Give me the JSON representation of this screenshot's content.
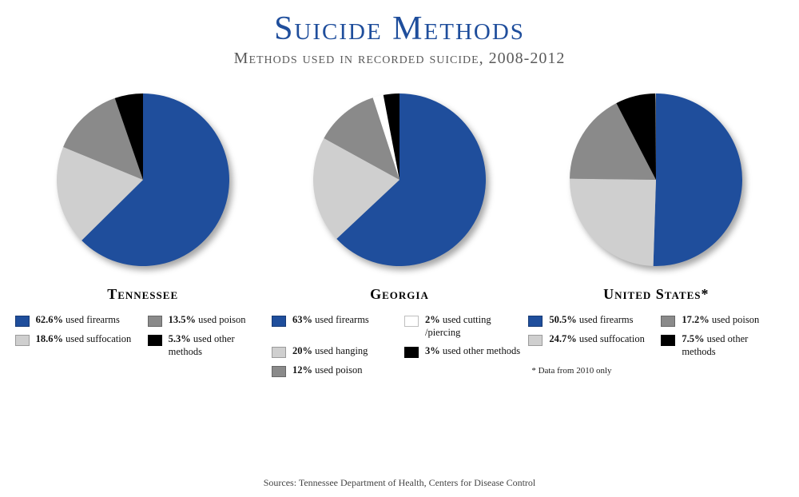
{
  "title": "Suicide Methods",
  "subtitle": "Methods used in recorded suicide, 2008-2012",
  "title_color": "#1f4e9c",
  "title_fontsize": 42,
  "subtitle_color": "#5a5a5a",
  "subtitle_fontsize": 20,
  "background_color": "#ffffff",
  "pie_radius": 108,
  "chart_label_fontsize": 18,
  "charts": [
    {
      "label": "Tennessee",
      "slices": [
        {
          "pct": 62.6,
          "color": "#1f4e9c",
          "legend_pct": "62.6%",
          "legend_text": "used firearms"
        },
        {
          "pct": 18.6,
          "color": "#cfcfcf",
          "legend_pct": "18.6%",
          "legend_text": "used suffocation"
        },
        {
          "pct": 13.5,
          "color": "#8a8a8a",
          "legend_pct": "13.5%",
          "legend_text": "used poison"
        },
        {
          "pct": 5.3,
          "color": "#000000",
          "legend_pct": "5.3%",
          "legend_text": "used other methods"
        }
      ],
      "legend_order": [
        0,
        2,
        1,
        3
      ],
      "footnote": null
    },
    {
      "label": "Georgia",
      "slices": [
        {
          "pct": 63,
          "color": "#1f4e9c",
          "legend_pct": "63%",
          "legend_text": "used firearms"
        },
        {
          "pct": 20,
          "color": "#cfcfcf",
          "legend_pct": "20%",
          "legend_text": "used hanging"
        },
        {
          "pct": 12,
          "color": "#8a8a8a",
          "legend_pct": "12%",
          "legend_text": "used poison"
        },
        {
          "pct": 2,
          "color": "#ffffff",
          "legend_pct": "2%",
          "legend_text": "used cutting /piercing"
        },
        {
          "pct": 3,
          "color": "#000000",
          "legend_pct": "3%",
          "legend_text": "used other methods"
        }
      ],
      "legend_order": [
        0,
        3,
        1,
        4,
        2
      ],
      "footnote": null
    },
    {
      "label": "United States*",
      "slices": [
        {
          "pct": 50.5,
          "color": "#1f4e9c",
          "legend_pct": "50.5%",
          "legend_text": "used firearms"
        },
        {
          "pct": 24.7,
          "color": "#cfcfcf",
          "legend_pct": "24.7%",
          "legend_text": "used suffocation"
        },
        {
          "pct": 17.2,
          "color": "#8a8a8a",
          "legend_pct": "17.2%",
          "legend_text": "used poison"
        },
        {
          "pct": 7.5,
          "color": "#000000",
          "legend_pct": "7.5%",
          "legend_text": "used other methods"
        }
      ],
      "legend_order": [
        0,
        2,
        1,
        3
      ],
      "footnote": "* Data from 2010 only"
    }
  ],
  "sources_text": "Sources: Tennessee Department of Health, Centers for Disease Control",
  "sources_fontsize": 12,
  "sources_color": "#444444"
}
